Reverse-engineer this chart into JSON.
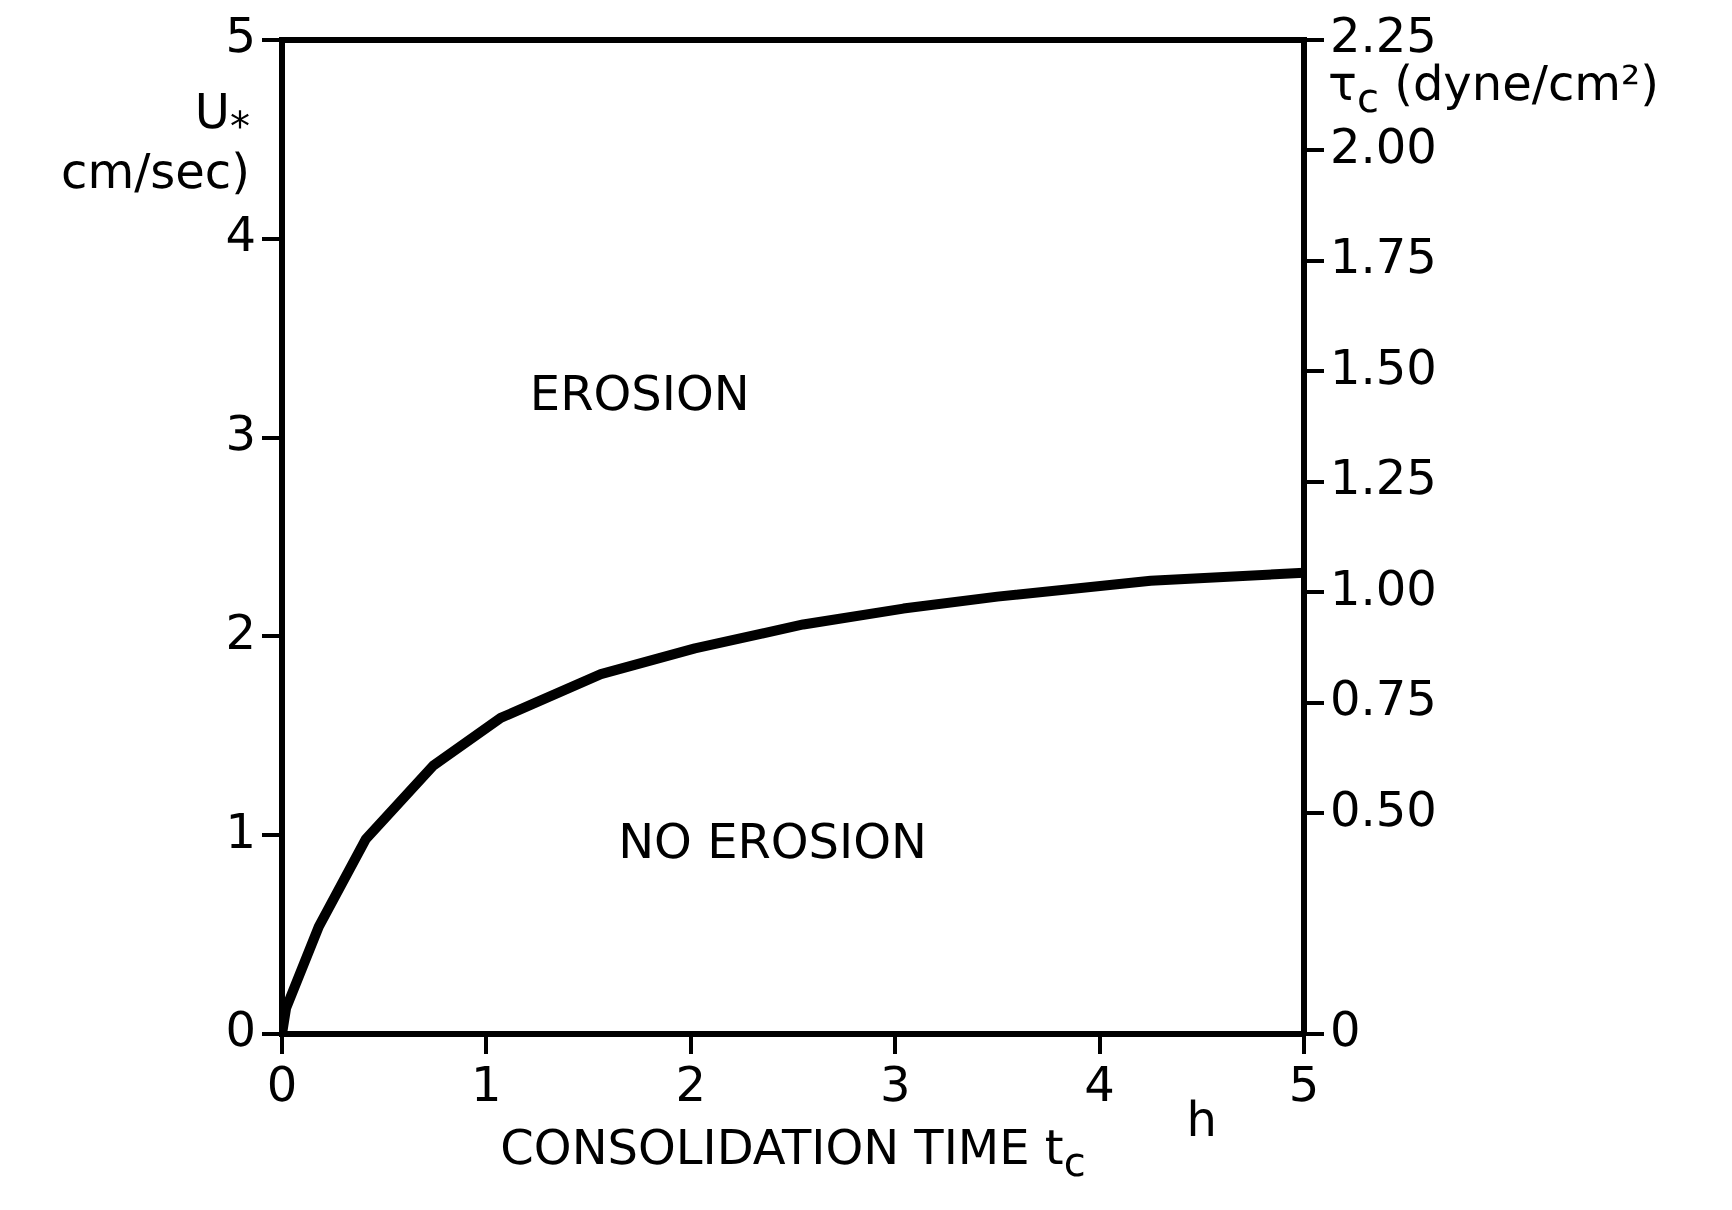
{
  "chart_data": {
    "type": "line",
    "xlabel": "CONSOLIDATION TIME t$_{c}$",
    "ylabel": "U$_{*}$ cm/sec)",
    "y2label": "τ$_{c}$ (dyne/cm²)",
    "x": [
      0,
      0.02,
      0.18,
      0.41,
      0.74,
      1.07,
      1.56,
      2.02,
      2.55,
      3.04,
      3.5,
      4.25,
      5
    ],
    "series": [
      {
        "color": "#000000",
        "values": [
          0,
          0.13,
          0.54,
          0.98,
          1.35,
          1.59,
          1.81,
          1.94,
          2.06,
          2.14,
          2.2,
          2.28,
          2.32
        ]
      }
    ],
    "xlim": [
      0,
      5
    ],
    "xticks": [
      0,
      1,
      2,
      3,
      4,
      5
    ],
    "ylim": [
      0,
      5
    ],
    "yticks": [
      0,
      1,
      2,
      3,
      4,
      5
    ],
    "y2lim": [
      0,
      2.25
    ],
    "y2ticks": [
      0,
      {
        "value": 0.5,
        "label": "0.50"
      },
      {
        "value": 0.75,
        "label": "0.75"
      },
      {
        "value": 1,
        "label": "1.00"
      },
      {
        "value": 1.25,
        "label": "1.25"
      },
      {
        "value": 1.5,
        "label": "1.50"
      },
      {
        "value": 1.75,
        "label": "1.75"
      },
      {
        "value": 2,
        "label": "2.00"
      },
      {
        "value": 2.25,
        "label": "2.25"
      }
    ],
    "annotations": [
      "EROSION",
      "NO EROSION",
      "h"
    ],
    "grid": false,
    "legend": false,
    "marker": "none",
    "line_style": "solid"
  }
}
